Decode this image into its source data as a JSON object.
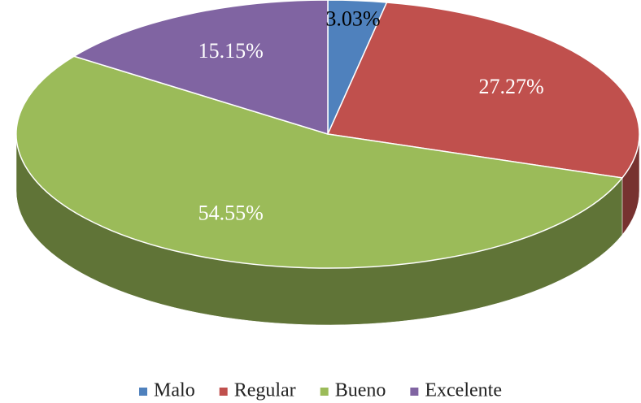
{
  "chart_data": {
    "type": "pie",
    "categories": [
      "Malo",
      "Regular",
      "Bueno",
      "Excelente"
    ],
    "values": [
      3.03,
      27.27,
      54.55,
      15.15
    ],
    "value_labels": [
      "3.03%",
      "27.27%",
      "54.55%",
      "15.15%"
    ],
    "colors": [
      "#4f81bd",
      "#c0504d",
      "#9bbb59",
      "#8064a2"
    ],
    "legend": "bottom"
  }
}
